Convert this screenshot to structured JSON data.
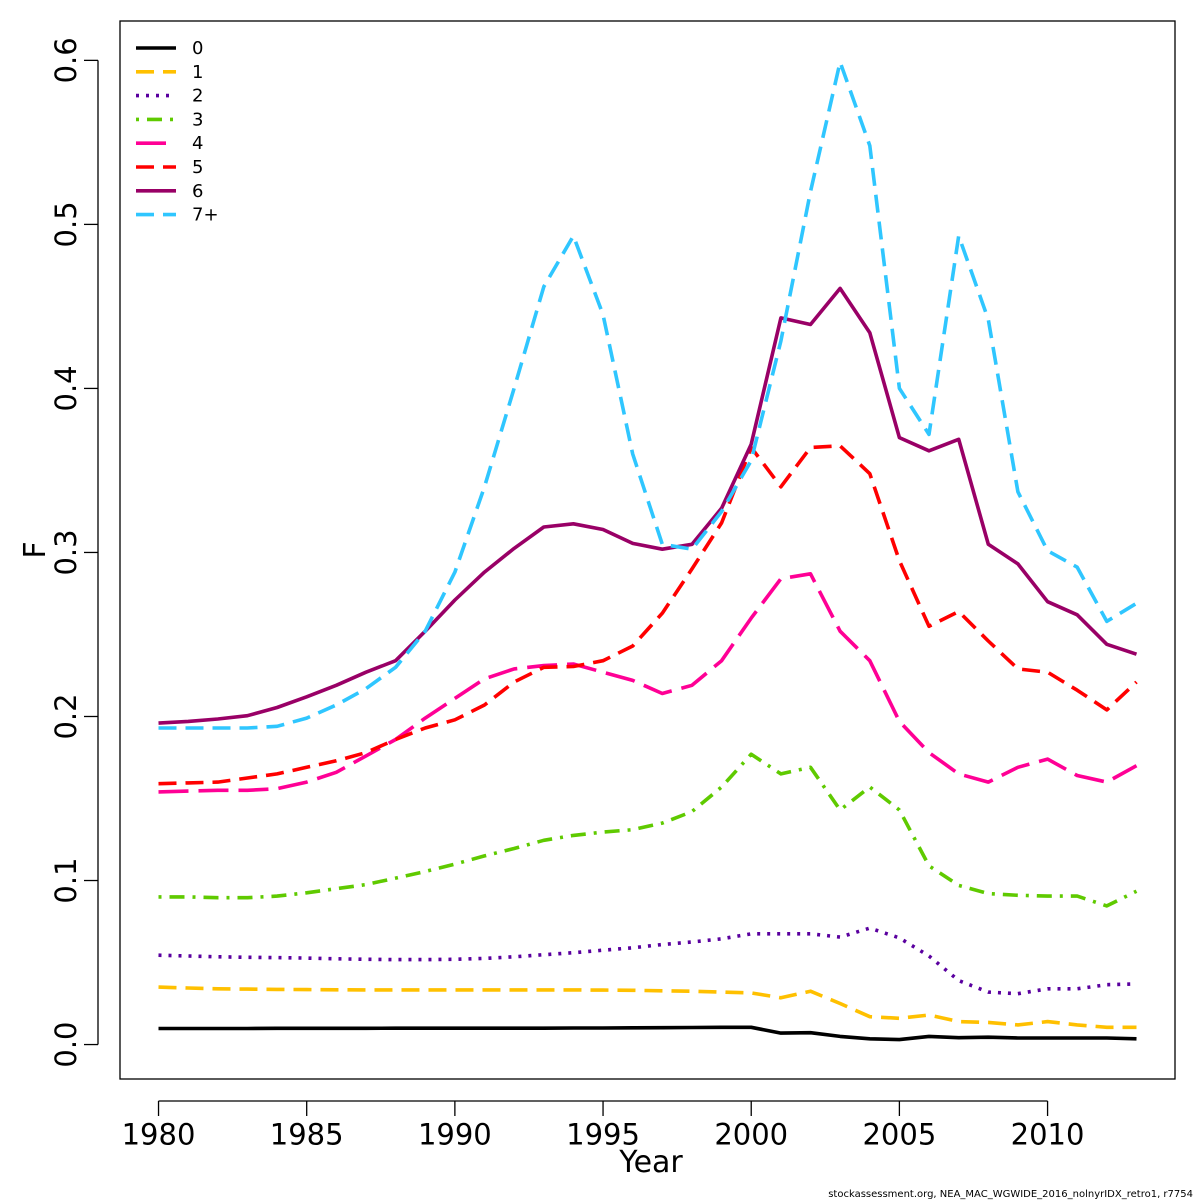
{
  "chart_data": {
    "type": "line",
    "xlabel": "Year",
    "ylabel": "F",
    "xlim": [
      1978.7,
      2014.3
    ],
    "ylim": [
      -0.021,
      0.624
    ],
    "xticks": [
      1980,
      1985,
      1990,
      1995,
      2000,
      2005,
      2010
    ],
    "xtick_labels": [
      "1980",
      "1985",
      "1990",
      "1995",
      "2000",
      "2005",
      "2010"
    ],
    "yticks": [
      0,
      0.1,
      0.2,
      0.3,
      0.4,
      0.5,
      0.6
    ],
    "ytick_labels": [
      "0.0",
      "0.1",
      "0.2",
      "0.3",
      "0.4",
      "0.5",
      "0.6"
    ],
    "grid": false,
    "legend_position": "top-left",
    "credit": "stockassessment.org, NEA_MAC_WGWIDE_2016_nolnyrIDX_retro1, r7754",
    "x": [
      1980,
      1981,
      1982,
      1983,
      1984,
      1985,
      1986,
      1987,
      1988,
      1989,
      1990,
      1991,
      1992,
      1993,
      1994,
      1995,
      1996,
      1997,
      1998,
      1999,
      2000,
      2001,
      2002,
      2003,
      2004,
      2005,
      2006,
      2007,
      2008,
      2009,
      2010,
      2011,
      2012,
      2013
    ],
    "series": [
      {
        "name": "0",
        "color": "#000000",
        "dash": "solid",
        "values": [
          0.0098,
          0.0098,
          0.0098,
          0.0098,
          0.0099,
          0.0099,
          0.0099,
          0.0099,
          0.01,
          0.01,
          0.01,
          0.01,
          0.01,
          0.01,
          0.0101,
          0.0101,
          0.0102,
          0.0103,
          0.0104,
          0.0105,
          0.0105,
          0.007,
          0.0072,
          0.005,
          0.0035,
          0.003,
          0.005,
          0.0042,
          0.0045,
          0.004,
          0.004,
          0.004,
          0.004,
          0.0035
        ]
      },
      {
        "name": "1",
        "color": "#FFC000",
        "dash": "dashed",
        "values": [
          0.035,
          0.0345,
          0.034,
          0.0338,
          0.0336,
          0.0335,
          0.0334,
          0.0333,
          0.0333,
          0.0333,
          0.0333,
          0.0333,
          0.0333,
          0.0333,
          0.0333,
          0.0332,
          0.0331,
          0.0328,
          0.0325,
          0.032,
          0.0315,
          0.0285,
          0.0325,
          0.025,
          0.017,
          0.016,
          0.018,
          0.014,
          0.0135,
          0.012,
          0.014,
          0.012,
          0.0105,
          0.0105
        ]
      },
      {
        "name": "2",
        "color": "#5A009F",
        "dash": "dotted",
        "values": [
          0.0545,
          0.054,
          0.0535,
          0.0532,
          0.053,
          0.0527,
          0.0523,
          0.052,
          0.0518,
          0.0518,
          0.052,
          0.0525,
          0.0535,
          0.0548,
          0.056,
          0.0575,
          0.059,
          0.061,
          0.0625,
          0.0645,
          0.0675,
          0.0675,
          0.0675,
          0.0655,
          0.071,
          0.065,
          0.054,
          0.039,
          0.032,
          0.031,
          0.034,
          0.034,
          0.0365,
          0.037
        ]
      },
      {
        "name": "3",
        "color": "#5FCA00",
        "dash": "dashdot",
        "values": [
          0.09,
          0.09,
          0.0895,
          0.0895,
          0.0905,
          0.0925,
          0.095,
          0.0975,
          0.1015,
          0.1055,
          0.11,
          0.115,
          0.1195,
          0.1245,
          0.1275,
          0.1295,
          0.131,
          0.135,
          0.142,
          0.157,
          0.177,
          0.165,
          0.169,
          0.143,
          0.157,
          0.143,
          0.109,
          0.097,
          0.092,
          0.091,
          0.0905,
          0.0905,
          0.0845,
          0.0935
        ]
      },
      {
        "name": "4",
        "color": "#FF0095",
        "dash": "longdash",
        "values": [
          0.154,
          0.1545,
          0.155,
          0.155,
          0.156,
          0.16,
          0.166,
          0.176,
          0.186,
          0.199,
          0.211,
          0.223,
          0.229,
          0.231,
          0.232,
          0.227,
          0.222,
          0.214,
          0.219,
          0.234,
          0.26,
          0.284,
          0.287,
          0.252,
          0.234,
          0.197,
          0.178,
          0.165,
          0.16,
          0.169,
          0.174,
          0.164,
          0.16,
          0.17
        ]
      },
      {
        "name": "5",
        "color": "#FF0000",
        "dash": "dashed",
        "values": [
          0.159,
          0.1595,
          0.16,
          0.1625,
          0.165,
          0.169,
          0.173,
          0.178,
          0.186,
          0.193,
          0.198,
          0.207,
          0.221,
          0.23,
          0.2305,
          0.234,
          0.243,
          0.263,
          0.29,
          0.318,
          0.364,
          0.34,
          0.364,
          0.365,
          0.348,
          0.295,
          0.255,
          0.264,
          0.246,
          0.229,
          0.227,
          0.216,
          0.204,
          0.221
        ]
      },
      {
        "name": "6",
        "color": "#990066",
        "dash": "solid",
        "values": [
          0.196,
          0.197,
          0.1985,
          0.2005,
          0.2055,
          0.212,
          0.219,
          0.227,
          0.234,
          0.252,
          0.271,
          0.288,
          0.3025,
          0.3155,
          0.3175,
          0.314,
          0.3055,
          0.302,
          0.305,
          0.327,
          0.366,
          0.443,
          0.439,
          0.461,
          0.434,
          0.37,
          0.362,
          0.369,
          0.305,
          0.293,
          0.27,
          0.262,
          0.244,
          0.238
        ]
      },
      {
        "name": "7+",
        "color": "#2FC6FF",
        "dash": "dashed",
        "values": [
          0.193,
          0.193,
          0.193,
          0.193,
          0.194,
          0.199,
          0.207,
          0.217,
          0.23,
          0.252,
          0.288,
          0.34,
          0.4,
          0.462,
          0.493,
          0.445,
          0.36,
          0.305,
          0.302,
          0.325,
          0.356,
          0.429,
          0.52,
          0.599,
          0.548,
          0.4,
          0.372,
          0.493,
          0.442,
          0.337,
          0.301,
          0.291,
          0.258,
          0.269
        ]
      }
    ]
  }
}
